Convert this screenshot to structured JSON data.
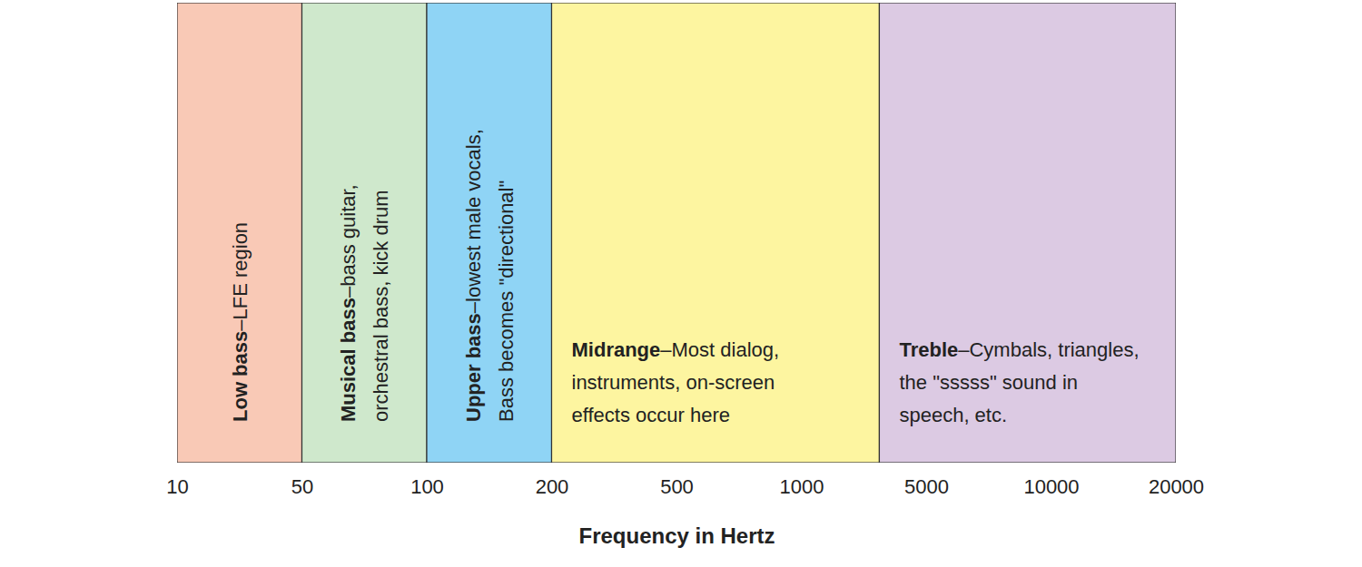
{
  "chart_data": {
    "type": "band",
    "x_label": "Frequency in Hertz",
    "xlim": [
      10,
      20000
    ],
    "xticks": [
      10,
      50,
      100,
      200,
      500,
      1000,
      5000,
      10000,
      20000
    ],
    "tick_labels": "x",
    "bands": [
      {
        "name": "Low bass",
        "description": [
          "–LFE region"
        ],
        "start": 10,
        "end": 50,
        "color": "#f9c9b6"
      },
      {
        "name": "Musical bass",
        "description": [
          "–bass guitar,",
          "orchestral bass, kick drum"
        ],
        "start": 50,
        "end": 100,
        "color": "#cfe8cc"
      },
      {
        "name": "Upper bass",
        "description": [
          "–lowest male vocals,",
          "Bass becomes \"directional\""
        ],
        "start": 100,
        "end": 200,
        "color": "#8fd4f5"
      },
      {
        "name": "Midrange",
        "description": [
          "–Most dialog,",
          "instruments, on-screen",
          "effects occur here"
        ],
        "start": 200,
        "end": 3500,
        "color": "#fdf5a0"
      },
      {
        "name": "Treble",
        "description": [
          "–Cymbals, triangles,",
          "the \"sssss\" sound in",
          "speech, etc."
        ],
        "start": 3500,
        "end": 20000,
        "color": "#dccae3"
      }
    ]
  }
}
